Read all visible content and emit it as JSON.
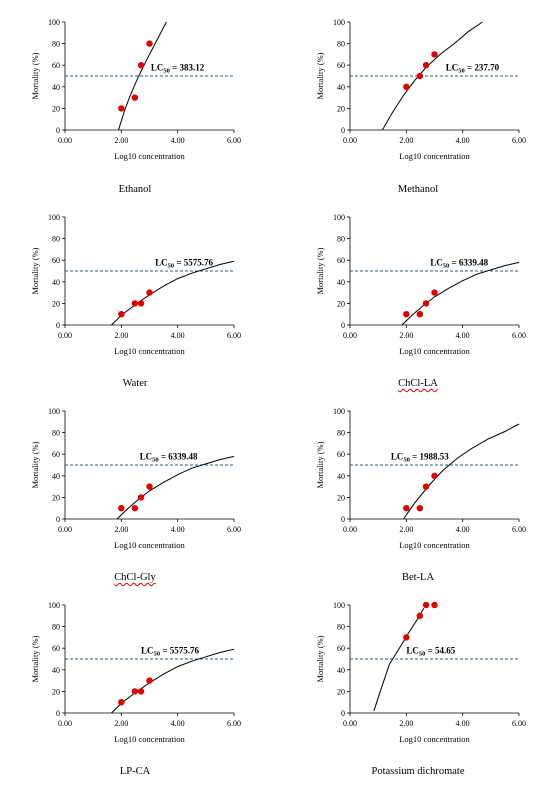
{
  "chart_data": [
    {
      "type": "scatter",
      "caption": "Ethanol",
      "xlabel": "Log10 concentration",
      "ylabel": "Mortality (%)",
      "xlim": [
        0,
        6
      ],
      "ylim": [
        0,
        100
      ],
      "xticks": [
        "0.00",
        "2.00",
        "4.00",
        "6.00"
      ],
      "yticks": [
        "0",
        "20",
        "40",
        "60",
        "80",
        "100"
      ],
      "points": [
        {
          "x": 2.0,
          "y": 20
        },
        {
          "x": 2.48,
          "y": 30
        },
        {
          "x": 2.7,
          "y": 60
        },
        {
          "x": 3.0,
          "y": 80
        }
      ],
      "fit_curve": [
        {
          "x": 1.9,
          "y": 0
        },
        {
          "x": 2.1,
          "y": 17
        },
        {
          "x": 2.3,
          "y": 31
        },
        {
          "x": 2.6,
          "y": 49
        },
        {
          "x": 2.9,
          "y": 65
        },
        {
          "x": 3.2,
          "y": 80
        },
        {
          "x": 3.6,
          "y": 100
        }
      ],
      "reference_line": {
        "y": 50
      },
      "annotation": {
        "prefix": "LC",
        "sub": "50",
        "suffix": " = 383.12",
        "x": 3.05,
        "y": 55
      }
    },
    {
      "type": "scatter",
      "caption": "Methanol",
      "xlabel": "Log10 concentration",
      "ylabel": "Mortality (%)",
      "xlim": [
        0,
        6
      ],
      "ylim": [
        0,
        100
      ],
      "xticks": [
        "0.00",
        "2.00",
        "4.00",
        "6.00"
      ],
      "yticks": [
        "0",
        "20",
        "40",
        "60",
        "80",
        "100"
      ],
      "points": [
        {
          "x": 2.0,
          "y": 40
        },
        {
          "x": 2.48,
          "y": 50
        },
        {
          "x": 2.7,
          "y": 60
        },
        {
          "x": 3.0,
          "y": 70
        }
      ],
      "fit_curve": [
        {
          "x": 1.15,
          "y": 0
        },
        {
          "x": 1.5,
          "y": 16
        },
        {
          "x": 1.9,
          "y": 32
        },
        {
          "x": 2.3,
          "y": 46
        },
        {
          "x": 2.7,
          "y": 58
        },
        {
          "x": 3.2,
          "y": 70
        },
        {
          "x": 3.7,
          "y": 80
        },
        {
          "x": 4.2,
          "y": 91
        },
        {
          "x": 4.7,
          "y": 100
        }
      ],
      "reference_line": {
        "y": 50
      },
      "annotation": {
        "prefix": "LC",
        "sub": "50",
        "suffix": " = 237.70",
        "x": 3.4,
        "y": 55
      }
    },
    {
      "type": "scatter",
      "caption": "Water",
      "xlabel": "Log10 concentration",
      "ylabel": "Mortality (%)",
      "xlim": [
        0,
        6
      ],
      "ylim": [
        0,
        100
      ],
      "xticks": [
        "0.00",
        "2.00",
        "4.00",
        "6.00"
      ],
      "yticks": [
        "0",
        "20",
        "40",
        "60",
        "80",
        "100"
      ],
      "points": [
        {
          "x": 2.0,
          "y": 10
        },
        {
          "x": 2.48,
          "y": 20
        },
        {
          "x": 2.7,
          "y": 20
        },
        {
          "x": 3.0,
          "y": 30
        }
      ],
      "fit_curve": [
        {
          "x": 1.65,
          "y": 0
        },
        {
          "x": 2.0,
          "y": 9
        },
        {
          "x": 2.5,
          "y": 19
        },
        {
          "x": 3.0,
          "y": 28
        },
        {
          "x": 3.5,
          "y": 36
        },
        {
          "x": 4.0,
          "y": 43
        },
        {
          "x": 4.5,
          "y": 48
        },
        {
          "x": 5.0,
          "y": 52
        },
        {
          "x": 5.5,
          "y": 56
        },
        {
          "x": 6.0,
          "y": 59
        }
      ],
      "reference_line": {
        "y": 50
      },
      "annotation": {
        "prefix": "LC",
        "sub": "50",
        "suffix": " = 5575.76",
        "x": 3.2,
        "y": 55
      }
    },
    {
      "type": "scatter",
      "caption": "ChCl-LA",
      "caption_underlined": true,
      "xlabel": "Log10 concentration",
      "ylabel": "Mortality (%)",
      "xlim": [
        0,
        6
      ],
      "ylim": [
        0,
        100
      ],
      "xticks": [
        "0.00",
        "2.00",
        "4.00",
        "6.00"
      ],
      "yticks": [
        "0",
        "20",
        "40",
        "60",
        "80",
        "100"
      ],
      "points": [
        {
          "x": 2.0,
          "y": 10
        },
        {
          "x": 2.48,
          "y": 10
        },
        {
          "x": 2.7,
          "y": 20
        },
        {
          "x": 3.0,
          "y": 30
        }
      ],
      "fit_curve": [
        {
          "x": 1.85,
          "y": 0
        },
        {
          "x": 2.2,
          "y": 9
        },
        {
          "x": 2.6,
          "y": 18
        },
        {
          "x": 3.0,
          "y": 26
        },
        {
          "x": 3.5,
          "y": 34
        },
        {
          "x": 4.0,
          "y": 41
        },
        {
          "x": 4.5,
          "y": 47
        },
        {
          "x": 5.0,
          "y": 51
        },
        {
          "x": 5.5,
          "y": 55
        },
        {
          "x": 6.0,
          "y": 58
        }
      ],
      "reference_line": {
        "y": 50
      },
      "annotation": {
        "prefix": "LC",
        "sub": "50",
        "suffix": " = 6339.48",
        "x": 2.85,
        "y": 55
      }
    },
    {
      "type": "scatter",
      "caption": "ChCl-Gly",
      "caption_underlined": true,
      "xlabel": "Log10 concentration",
      "ylabel": "Mortality (%)",
      "xlim": [
        0,
        6
      ],
      "ylim": [
        0,
        100
      ],
      "xticks": [
        "0.00",
        "2.00",
        "4.00",
        "6.00"
      ],
      "yticks": [
        "0",
        "20",
        "40",
        "60",
        "80",
        "100"
      ],
      "points": [
        {
          "x": 2.0,
          "y": 10
        },
        {
          "x": 2.48,
          "y": 10
        },
        {
          "x": 2.7,
          "y": 20
        },
        {
          "x": 3.0,
          "y": 30
        }
      ],
      "fit_curve": [
        {
          "x": 1.85,
          "y": 0
        },
        {
          "x": 2.2,
          "y": 9
        },
        {
          "x": 2.6,
          "y": 18
        },
        {
          "x": 3.0,
          "y": 26
        },
        {
          "x": 3.5,
          "y": 34
        },
        {
          "x": 4.0,
          "y": 41
        },
        {
          "x": 4.5,
          "y": 47
        },
        {
          "x": 5.0,
          "y": 51
        },
        {
          "x": 5.5,
          "y": 55
        },
        {
          "x": 6.0,
          "y": 58
        }
      ],
      "reference_line": {
        "y": 50
      },
      "annotation": {
        "prefix": "LC",
        "sub": "50",
        "suffix": " = 6339.48",
        "x": 2.65,
        "y": 55
      }
    },
    {
      "type": "scatter",
      "caption": "Bet-LA",
      "xlabel": "Log10 concentration",
      "ylabel": "Mortality (%)",
      "xlim": [
        0,
        6
      ],
      "ylim": [
        0,
        100
      ],
      "xticks": [
        "0.00",
        "2.00",
        "4.00",
        "6.00"
      ],
      "yticks": [
        "0",
        "20",
        "40",
        "60",
        "80",
        "100"
      ],
      "points": [
        {
          "x": 2.0,
          "y": 10
        },
        {
          "x": 2.48,
          "y": 10
        },
        {
          "x": 2.7,
          "y": 30
        },
        {
          "x": 3.0,
          "y": 40
        }
      ],
      "fit_curve": [
        {
          "x": 1.9,
          "y": 0
        },
        {
          "x": 2.3,
          "y": 15
        },
        {
          "x": 2.8,
          "y": 31
        },
        {
          "x": 3.3,
          "y": 45
        },
        {
          "x": 3.8,
          "y": 56
        },
        {
          "x": 4.3,
          "y": 65
        },
        {
          "x": 4.9,
          "y": 74
        },
        {
          "x": 5.5,
          "y": 81
        },
        {
          "x": 6.0,
          "y": 88
        }
      ],
      "reference_line": {
        "y": 50
      },
      "annotation": {
        "prefix": "LC",
        "sub": "50",
        "suffix": " = 1988.53",
        "x": 1.45,
        "y": 55
      }
    },
    {
      "type": "scatter",
      "caption": "LP-CA",
      "xlabel": "Log10 concentration",
      "ylabel": "Mortality (%)",
      "xlim": [
        0,
        6
      ],
      "ylim": [
        0,
        100
      ],
      "xticks": [
        "0.00",
        "2.00",
        "4.00",
        "6.00"
      ],
      "yticks": [
        "0",
        "20",
        "40",
        "60",
        "80",
        "100"
      ],
      "points": [
        {
          "x": 2.0,
          "y": 10
        },
        {
          "x": 2.48,
          "y": 20
        },
        {
          "x": 2.7,
          "y": 20
        },
        {
          "x": 3.0,
          "y": 30
        }
      ],
      "fit_curve": [
        {
          "x": 1.65,
          "y": 0
        },
        {
          "x": 2.0,
          "y": 9
        },
        {
          "x": 2.5,
          "y": 19
        },
        {
          "x": 3.0,
          "y": 28
        },
        {
          "x": 3.5,
          "y": 36
        },
        {
          "x": 4.0,
          "y": 43
        },
        {
          "x": 4.5,
          "y": 48
        },
        {
          "x": 5.0,
          "y": 52
        },
        {
          "x": 5.5,
          "y": 56
        },
        {
          "x": 6.0,
          "y": 59
        }
      ],
      "reference_line": {
        "y": 50
      },
      "annotation": {
        "prefix": "LC",
        "sub": "50",
        "suffix": " = 5575.76",
        "x": 2.7,
        "y": 55
      }
    },
    {
      "type": "scatter",
      "caption": "Potassium dichromate",
      "xlabel": "Log10 concentration",
      "ylabel": "Mortality (%)",
      "xlim": [
        0,
        6
      ],
      "ylim": [
        0,
        100
      ],
      "xticks": [
        "0.00",
        "2.00",
        "4.00",
        "6.00"
      ],
      "yticks": [
        "0",
        "20",
        "40",
        "60",
        "80",
        "100"
      ],
      "points": [
        {
          "x": 2.0,
          "y": 70
        },
        {
          "x": 2.48,
          "y": 90
        },
        {
          "x": 2.7,
          "y": 100
        },
        {
          "x": 3.0,
          "y": 100
        }
      ],
      "fit_curve": [
        {
          "x": 0.85,
          "y": 2
        },
        {
          "x": 1.1,
          "y": 22
        },
        {
          "x": 1.4,
          "y": 45
        },
        {
          "x": 1.8,
          "y": 62
        },
        {
          "x": 2.1,
          "y": 75
        },
        {
          "x": 2.4,
          "y": 87
        },
        {
          "x": 2.62,
          "y": 97
        }
      ],
      "reference_line": {
        "y": 50
      },
      "annotation": {
        "prefix": "LC",
        "sub": "50",
        "suffix": " = 54.65",
        "x": 2.0,
        "y": 55
      }
    }
  ]
}
